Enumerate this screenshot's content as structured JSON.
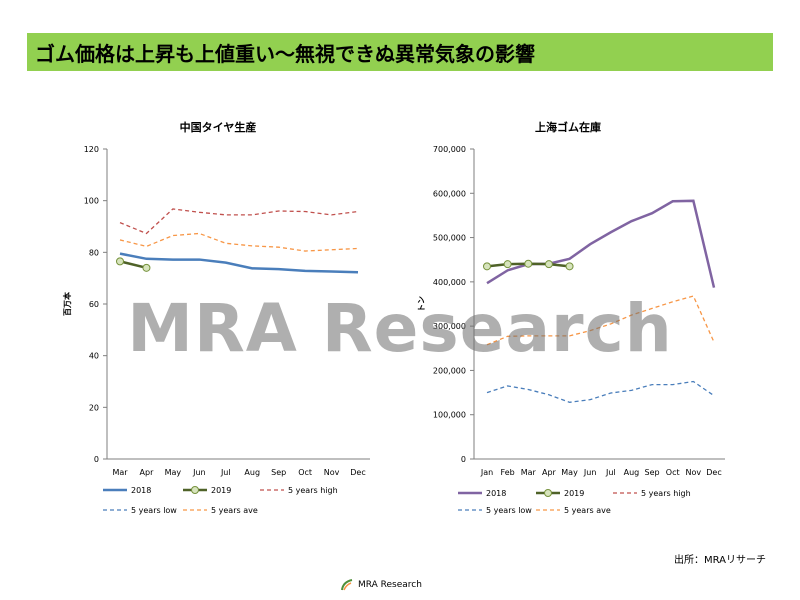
{
  "title": "ゴム価格は上昇も上値重い～無視できぬ異常気象の影響",
  "watermark": "MRA Research",
  "source": "出所：MRAリサーチ",
  "footer": "MRA Research",
  "colors": {
    "title_bg": "#92d050",
    "s2018": "#4a7ebb",
    "s2019": "#4f6228",
    "s2019_marker": "#d7e4bd",
    "high": "#c0504d",
    "low": "#4a7ebb",
    "ave": "#f79646",
    "purple": "#8064a2"
  },
  "chart_data": [
    {
      "type": "line",
      "title": "中国タイヤ生産",
      "ylabel": "百万本",
      "ylim": [
        0,
        120
      ],
      "yticks": [
        "0",
        "20",
        "40",
        "60",
        "80",
        "100",
        "120"
      ],
      "categories": [
        "Mar",
        "Apr",
        "May",
        "Jun",
        "Jul",
        "Aug",
        "Sep",
        "Oct",
        "Nov",
        "Dec"
      ],
      "series": [
        {
          "name": "2018",
          "style": "solid",
          "color": "#4a7ebb",
          "values": [
            79.5,
            77.5,
            77.2,
            77.2,
            76,
            73.8,
            73.5,
            72.8,
            72.6,
            72.3
          ]
        },
        {
          "name": "2019",
          "style": "marker",
          "color": "#4f6228",
          "values": [
            76.5,
            74,
            null,
            null,
            null,
            null,
            null,
            null,
            null,
            null
          ]
        },
        {
          "name": "5 years high",
          "style": "dash",
          "color": "#c0504d",
          "values": [
            91.5,
            87.3,
            96.8,
            95.5,
            94.5,
            94.5,
            96,
            95.8,
            94.5,
            95.8
          ]
        },
        {
          "name": "5 years low",
          "style": "dash",
          "color": "#4a7ebb",
          "values": [
            null,
            null,
            null,
            null,
            null,
            null,
            null,
            null,
            null,
            null
          ]
        },
        {
          "name": "5 years ave",
          "style": "dash",
          "color": "#f79646",
          "values": [
            84.8,
            82.3,
            86.5,
            87.3,
            83.5,
            82.5,
            82,
            80.5,
            81,
            81.5
          ]
        }
      ]
    },
    {
      "type": "line",
      "title": "上海ゴム在庫",
      "ylabel": "トン",
      "ylim": [
        0,
        700000
      ],
      "yticks": [
        "0",
        "100,000",
        "200,000",
        "300,000",
        "400,000",
        "500,000",
        "600,000",
        "700,000"
      ],
      "categories": [
        "Jan",
        "Feb",
        "Mar",
        "Apr",
        "May",
        "Jun",
        "Jul",
        "Aug",
        "Sep",
        "Oct",
        "Nov",
        "Dec"
      ],
      "series": [
        {
          "name": "2018",
          "style": "solid",
          "color": "#8064a2",
          "values": [
            397000,
            426000,
            440000,
            441000,
            452000,
            485000,
            512000,
            537000,
            555000,
            582000,
            583000,
            387000
          ]
        },
        {
          "name": "2019",
          "style": "marker",
          "color": "#4f6228",
          "values": [
            435000,
            440000,
            441000,
            440000,
            435000,
            null,
            null,
            null,
            null,
            null,
            null,
            null
          ]
        },
        {
          "name": "5 years high",
          "style": "dash",
          "color": "#c0504d",
          "values": [
            null,
            null,
            null,
            null,
            null,
            null,
            null,
            null,
            null,
            null,
            null,
            null
          ]
        },
        {
          "name": "5 years low",
          "style": "dash",
          "color": "#4a7ebb",
          "values": [
            150000,
            165000,
            157000,
            145000,
            128000,
            134000,
            149000,
            155000,
            168000,
            168000,
            175000,
            143000
          ]
        },
        {
          "name": "5 years ave",
          "style": "dash",
          "color": "#f79646",
          "values": [
            258000,
            277000,
            278000,
            278000,
            278000,
            290000,
            305000,
            325000,
            340000,
            355000,
            368000,
            264000
          ]
        }
      ]
    }
  ]
}
